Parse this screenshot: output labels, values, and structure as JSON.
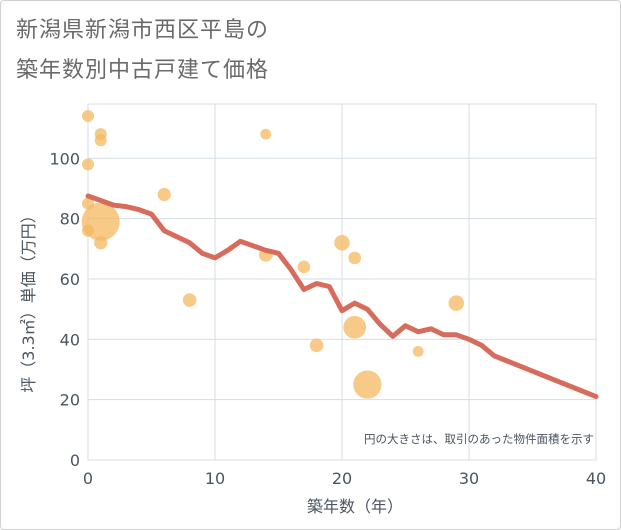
{
  "chart_data": {
    "type": "scatter",
    "title_lines": [
      "新潟県新潟市西区平島の",
      "築年数別中古戸建て価格"
    ],
    "xlabel": "築年数（年）",
    "ylabel": "坪（3.3㎡）単価（万円）",
    "xlim": [
      0,
      40
    ],
    "ylim": [
      0,
      118
    ],
    "x_ticks": [
      0,
      10,
      20,
      30,
      40
    ],
    "y_ticks": [
      0,
      20,
      40,
      60,
      80,
      100
    ],
    "note": "円の大きさは、取引のあった物件面積を示す",
    "colors": {
      "bubble": "#f4b860",
      "line": "#d86c5c",
      "grid": "#d4dde6",
      "axis_text": "#4a5560"
    },
    "points": [
      {
        "x": 0,
        "y": 114,
        "size": 1
      },
      {
        "x": 0,
        "y": 98,
        "size": 1
      },
      {
        "x": 0,
        "y": 85,
        "size": 1
      },
      {
        "x": 0,
        "y": 76,
        "size": 1
      },
      {
        "x": 1,
        "y": 108,
        "size": 1
      },
      {
        "x": 1,
        "y": 106,
        "size": 1
      },
      {
        "x": 1,
        "y": 79,
        "size": 10
      },
      {
        "x": 1,
        "y": 72,
        "size": 1.2
      },
      {
        "x": 6,
        "y": 88,
        "size": 1.2
      },
      {
        "x": 8,
        "y": 53,
        "size": 1.3
      },
      {
        "x": 14,
        "y": 108,
        "size": 0.8
      },
      {
        "x": 14,
        "y": 68,
        "size": 1.3
      },
      {
        "x": 17,
        "y": 64,
        "size": 1.1
      },
      {
        "x": 18,
        "y": 38,
        "size": 1.3
      },
      {
        "x": 20,
        "y": 72,
        "size": 1.7
      },
      {
        "x": 21,
        "y": 67,
        "size": 1.1
      },
      {
        "x": 21,
        "y": 44,
        "size": 3.6
      },
      {
        "x": 22,
        "y": 25,
        "size": 5.5
      },
      {
        "x": 26,
        "y": 36,
        "size": 0.8
      },
      {
        "x": 29,
        "y": 52,
        "size": 1.7
      }
    ],
    "trend_line": {
      "x": [
        0,
        1,
        2,
        3,
        4,
        5,
        6,
        7,
        8,
        9,
        10,
        11,
        12,
        13,
        14,
        15,
        16,
        17,
        18,
        19,
        20,
        21,
        22,
        23,
        24,
        25,
        26,
        27,
        28,
        29,
        30,
        31,
        32,
        40
      ],
      "y": [
        87.5,
        86,
        84.5,
        84,
        83,
        81.5,
        76,
        74,
        72,
        68.5,
        67,
        69.5,
        72.5,
        71,
        69.5,
        68.5,
        63,
        56.5,
        58.5,
        57.5,
        49.5,
        52,
        50,
        45,
        41,
        44.5,
        42.5,
        43.5,
        41.5,
        41.5,
        40,
        38,
        34.5,
        21
      ]
    }
  }
}
